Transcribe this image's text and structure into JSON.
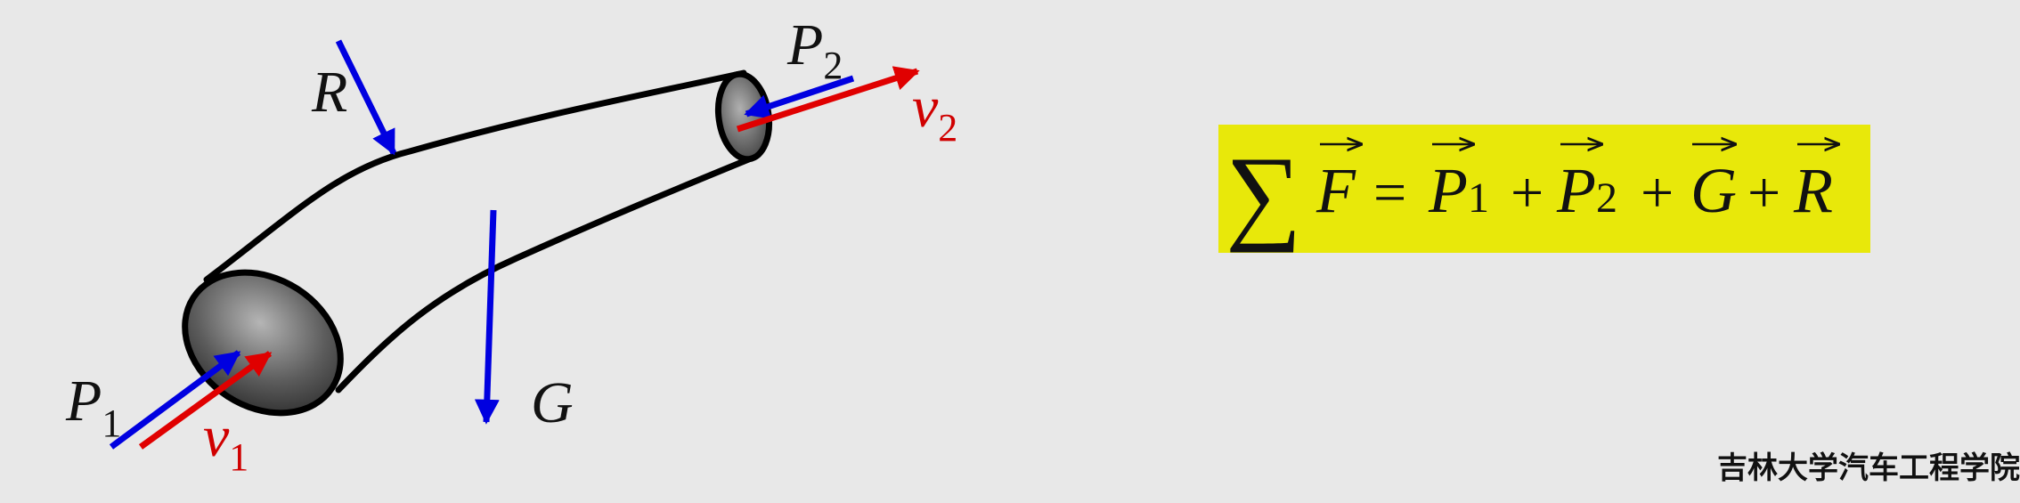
{
  "diagram": {
    "labels": {
      "R": "R",
      "G": "G",
      "P1_main": "P",
      "P1_sub": "1",
      "P2_main": "P",
      "P2_sub": "2",
      "v1_main": "v",
      "v1_sub": "1",
      "v2_main": "v",
      "v2_sub": "2"
    },
    "colors": {
      "pressure_arrows": "#0000e0",
      "velocity_arrows": "#e00000",
      "outline": "#000000"
    }
  },
  "formula": {
    "sum": "∑",
    "F": "F",
    "eq": "=",
    "P": "P",
    "sub1": "1",
    "plus": "+",
    "sub2": "2",
    "G": "G",
    "R": "R",
    "background": "#e8e80a"
  },
  "footer": {
    "institution": "吉林大学汽车工程学院"
  }
}
